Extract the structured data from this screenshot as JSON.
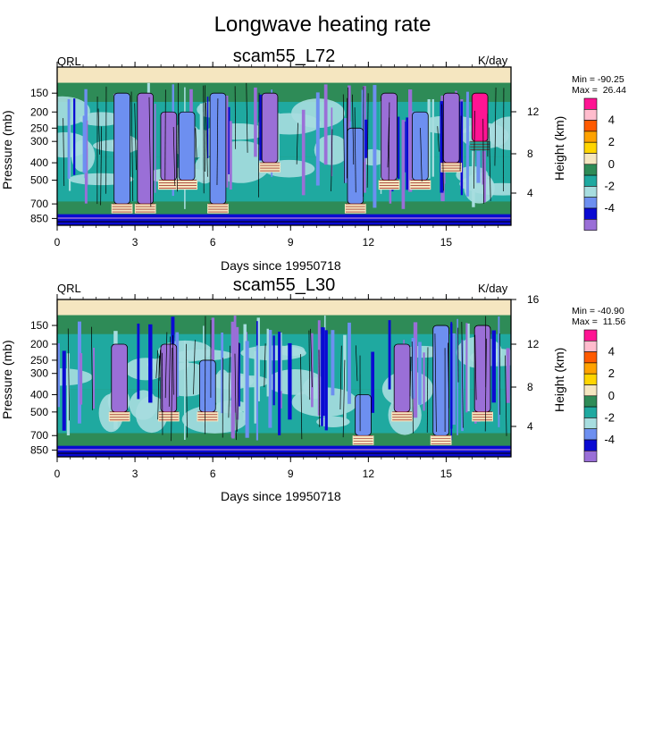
{
  "main_title": "Longwave heating rate",
  "colors": {
    "levels": [
      "#9a6fd7",
      "#0a0ad2",
      "#6d8ff0",
      "#a7dddf",
      "#1fa9a0",
      "#2e8b57",
      "#f5e6c0",
      "#ffd500",
      "#ffa200",
      "#ff5a00",
      "#ffbccd",
      "#ff1493"
    ],
    "contour": "#000000"
  },
  "chart_data": [
    {
      "type": "heatmap",
      "variable": "QRL",
      "title": "scam55_L72",
      "units": "K/day",
      "min_label": "Min = -90.25",
      "max_label": "Max =  26.44",
      "xlabel": "Days since 19950718",
      "ylabel": "Pressure (mb)",
      "y2label": "Height (km)",
      "xlim": [
        0,
        17.5
      ],
      "xticks": [
        "0",
        "3",
        "6",
        "9",
        "12",
        "15"
      ],
      "yticks_pressure": [
        "150",
        "200",
        "250",
        "300",
        "400",
        "500",
        "700",
        "850"
      ],
      "yticks_height": [
        "12",
        "8",
        "4"
      ],
      "colorbar_labels": [
        "4",
        "2",
        "0",
        "-2",
        "-4"
      ],
      "features": [
        {
          "day": 2.5,
          "p_top": 150,
          "p_bot": 700,
          "v": -4
        },
        {
          "day": 3.4,
          "p_top": 150,
          "p_bot": 700,
          "v": -6
        },
        {
          "day": 4.3,
          "p_top": 200,
          "p_bot": 500,
          "v": -6
        },
        {
          "day": 5.0,
          "p_top": 200,
          "p_bot": 500,
          "v": -4
        },
        {
          "day": 6.2,
          "p_top": 150,
          "p_bot": 700,
          "v": -4
        },
        {
          "day": 8.2,
          "p_top": 150,
          "p_bot": 400,
          "v": -6
        },
        {
          "day": 11.5,
          "p_top": 250,
          "p_bot": 700,
          "v": -4
        },
        {
          "day": 12.8,
          "p_top": 150,
          "p_bot": 500,
          "v": -6
        },
        {
          "day": 14.0,
          "p_top": 200,
          "p_bot": 500,
          "v": -4
        },
        {
          "day": 15.2,
          "p_top": 150,
          "p_bot": 400,
          "v": -6
        },
        {
          "day": 16.3,
          "p_top": 150,
          "p_bot": 300,
          "v": 5
        }
      ]
    },
    {
      "type": "heatmap",
      "variable": "QRL",
      "title": "scam55_L30",
      "units": "K/day",
      "min_label": "Min = -40.90",
      "max_label": "Max =  11.56",
      "xlabel": "Days since 19950718",
      "ylabel": "Pressure (mb)",
      "y2label": "Height (km)",
      "xlim": [
        0,
        17.5
      ],
      "xticks": [
        "0",
        "3",
        "6",
        "9",
        "12",
        "15"
      ],
      "yticks_pressure": [
        "150",
        "200",
        "250",
        "300",
        "400",
        "500",
        "700",
        "850"
      ],
      "yticks_height": [
        "16",
        "12",
        "8",
        "4"
      ],
      "colorbar_labels": [
        "4",
        "2",
        "0",
        "-2",
        "-4"
      ],
      "features": [
        {
          "day": 2.4,
          "p_top": 200,
          "p_bot": 500,
          "v": -6
        },
        {
          "day": 4.3,
          "p_top": 200,
          "p_bot": 500,
          "v": -6
        },
        {
          "day": 5.8,
          "p_top": 250,
          "p_bot": 500,
          "v": -4
        },
        {
          "day": 11.8,
          "p_top": 400,
          "p_bot": 700,
          "v": -4
        },
        {
          "day": 13.3,
          "p_top": 200,
          "p_bot": 500,
          "v": -6
        },
        {
          "day": 14.8,
          "p_top": 150,
          "p_bot": 700,
          "v": -4
        },
        {
          "day": 16.4,
          "p_top": 150,
          "p_bot": 500,
          "v": -6
        }
      ]
    }
  ]
}
